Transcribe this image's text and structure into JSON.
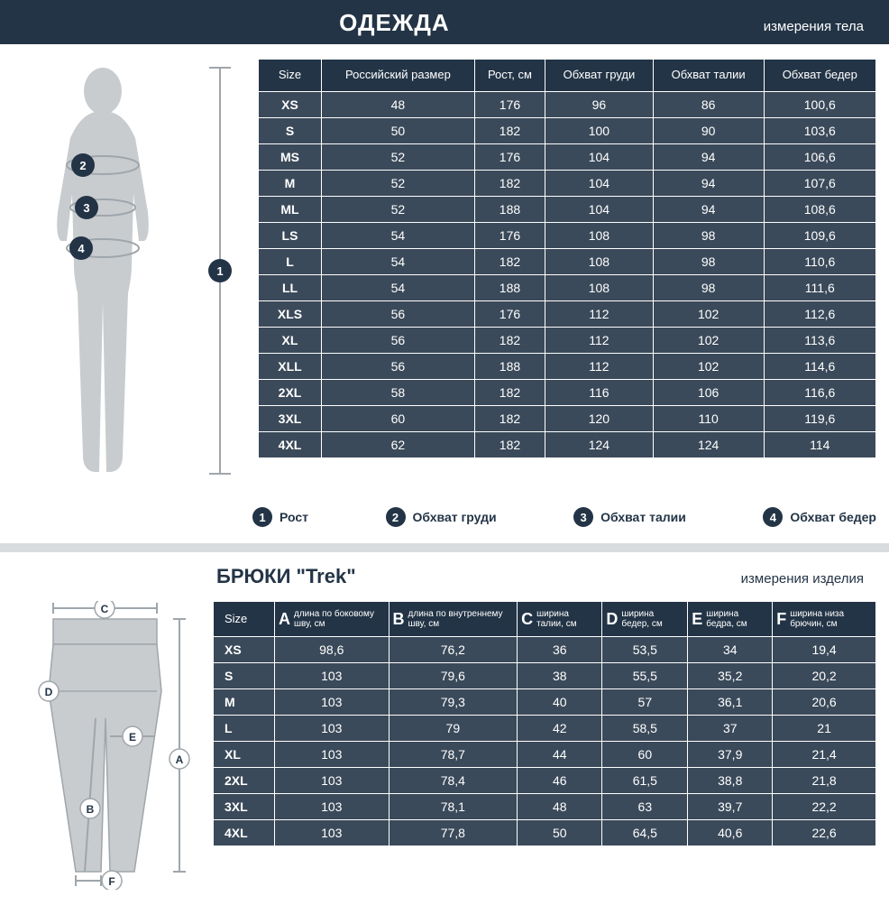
{
  "colors": {
    "header_bg": "#233446",
    "header_text": "#ffffff",
    "row_bg": "#3b4a5a",
    "border": "#ffffff",
    "divider": "#d9dcde",
    "silhouette": "#c8cccf",
    "silhouette_line": "#9fa6ab",
    "badge_bg": "#233446",
    "badge_text": "#ffffff",
    "legend_text": "#233446"
  },
  "section1": {
    "title": "ОДЕЖДА",
    "subtitle": "измерения тела",
    "table": {
      "columns": [
        "Size",
        "Российский размер",
        "Рост, см",
        "Обхват груди",
        "Обхват талии",
        "Обхват бедер"
      ],
      "rows": [
        [
          "XS",
          "48",
          "176",
          "96",
          "86",
          "100,6"
        ],
        [
          "S",
          "50",
          "182",
          "100",
          "90",
          "103,6"
        ],
        [
          "MS",
          "52",
          "176",
          "104",
          "94",
          "106,6"
        ],
        [
          "M",
          "52",
          "182",
          "104",
          "94",
          "107,6"
        ],
        [
          "ML",
          "52",
          "188",
          "104",
          "94",
          "108,6"
        ],
        [
          "LS",
          "54",
          "176",
          "108",
          "98",
          "109,6"
        ],
        [
          "L",
          "54",
          "182",
          "108",
          "98",
          "110,6"
        ],
        [
          "LL",
          "54",
          "188",
          "108",
          "98",
          "111,6"
        ],
        [
          "XLS",
          "56",
          "176",
          "112",
          "102",
          "112,6"
        ],
        [
          "XL",
          "56",
          "182",
          "112",
          "102",
          "113,6"
        ],
        [
          "XLL",
          "56",
          "188",
          "112",
          "102",
          "114,6"
        ],
        [
          "2XL",
          "58",
          "182",
          "116",
          "106",
          "116,6"
        ],
        [
          "3XL",
          "60",
          "182",
          "120",
          "110",
          "119,6"
        ],
        [
          "4XL",
          "62",
          "182",
          "124",
          "124",
          "114"
        ]
      ]
    },
    "legend": [
      {
        "num": "1",
        "label": "Рост"
      },
      {
        "num": "2",
        "label": "Обхват груди"
      },
      {
        "num": "3",
        "label": "Обхват талии"
      },
      {
        "num": "4",
        "label": "Обхват бедер"
      }
    ],
    "diagram_badges": [
      "1",
      "2",
      "3",
      "4"
    ]
  },
  "section2": {
    "title": "БРЮКИ \"Trek\"",
    "subtitle": "измерения изделия",
    "table": {
      "columns": [
        {
          "key": "Size",
          "letter": "",
          "desc": ""
        },
        {
          "key": "A",
          "letter": "A",
          "desc": "длина по боковому шву, см"
        },
        {
          "key": "B",
          "letter": "B",
          "desc": "длина по внутреннему шву, см"
        },
        {
          "key": "C",
          "letter": "C",
          "desc": "ширина талии, см"
        },
        {
          "key": "D",
          "letter": "D",
          "desc": "ширина бедер, см"
        },
        {
          "key": "E",
          "letter": "E",
          "desc": "ширина бедра, см"
        },
        {
          "key": "F",
          "letter": "F",
          "desc": "ширина низа брючин, см"
        }
      ],
      "rows": [
        [
          "XS",
          "98,6",
          "76,2",
          "36",
          "53,5",
          "34",
          "19,4"
        ],
        [
          "S",
          "103",
          "79,6",
          "38",
          "55,5",
          "35,2",
          "20,2"
        ],
        [
          "M",
          "103",
          "79,3",
          "40",
          "57",
          "36,1",
          "20,6"
        ],
        [
          "L",
          "103",
          "79",
          "42",
          "58,5",
          "37",
          "21"
        ],
        [
          "XL",
          "103",
          "78,7",
          "44",
          "60",
          "37,9",
          "21,4"
        ],
        [
          "2XL",
          "103",
          "78,4",
          "46",
          "61,5",
          "38,8",
          "21,8"
        ],
        [
          "3XL",
          "103",
          "78,1",
          "48",
          "63",
          "39,7",
          "22,2"
        ],
        [
          "4XL",
          "103",
          "77,8",
          "50",
          "64,5",
          "40,6",
          "22,6"
        ]
      ]
    },
    "diagram_labels": [
      "A",
      "B",
      "C",
      "D",
      "E",
      "F"
    ]
  }
}
